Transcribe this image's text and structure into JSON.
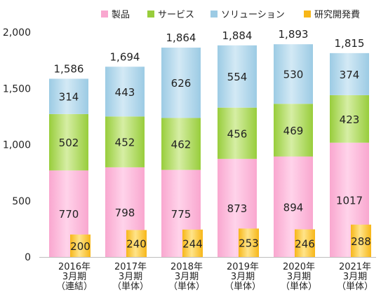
{
  "chart_data": {
    "type": "bar",
    "categories": [
      [
        "2016年",
        "3月期",
        "（連結）"
      ],
      [
        "2017年",
        "3月期",
        "（単体）"
      ],
      [
        "2018年",
        "3月期",
        "（単体）"
      ],
      [
        "2019年",
        "3月期",
        "（単体）"
      ],
      [
        "2020年",
        "3月期",
        "（単体）"
      ],
      [
        "2021年",
        "3月期",
        "（単体）"
      ]
    ],
    "stacked_series": [
      {
        "name": "製品",
        "values": [
          770,
          798,
          775,
          873,
          894,
          1017
        ],
        "color": "#f9a7cf",
        "color_light": "#ffd3ea"
      },
      {
        "name": "サービス",
        "values": [
          502,
          452,
          462,
          456,
          469,
          423
        ],
        "color": "#98cd3c",
        "color_light": "#d6eea4"
      },
      {
        "name": "ソリューション",
        "values": [
          314,
          443,
          626,
          554,
          530,
          374
        ],
        "color": "#9ccbe4",
        "color_light": "#d3e9f5"
      }
    ],
    "totals": [
      "1,586",
      "1,694",
      "1,864",
      "1,884",
      "1,893",
      "1,815"
    ],
    "side_series": {
      "name": "研究開発費",
      "values": [
        200,
        240,
        244,
        253,
        246,
        288
      ],
      "color": "#f7b719",
      "color_light": "#ffe48a"
    },
    "yticks": [
      "0",
      "500",
      "1,000",
      "1,500",
      "2,000"
    ],
    "ytick_values": [
      0,
      500,
      1000,
      1500,
      2000
    ],
    "ylim": [
      0,
      2000
    ],
    "legend_position": "top-right",
    "grid": false
  }
}
